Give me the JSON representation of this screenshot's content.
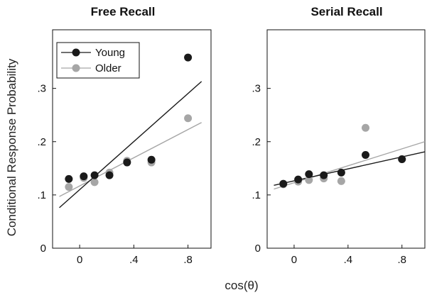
{
  "chart_data": [
    {
      "type": "scatter",
      "title": "Free Recall",
      "ylabel": "Conditional Response Probability",
      "xlabel": "cos(θ)",
      "xlim": [
        -0.2,
        0.97
      ],
      "ylim": [
        0,
        0.41
      ],
      "x_ticks": [
        0,
        0.4,
        0.8
      ],
      "x_tick_labels": [
        "0",
        ".4",
        ".8"
      ],
      "y_ticks": [
        0,
        0.1,
        0.2,
        0.3
      ],
      "y_tick_labels": [
        "0",
        ".1",
        ".2",
        ".3"
      ],
      "legend": {
        "position": "top-left"
      },
      "series": [
        {
          "name": "Young",
          "color": "#1a1a1a",
          "x": [
            -0.08,
            0.03,
            0.11,
            0.22,
            0.35,
            0.53,
            0.8
          ],
          "y": [
            0.13,
            0.135,
            0.137,
            0.137,
            0.161,
            0.166,
            0.358
          ],
          "fit": {
            "x": [
              -0.15,
              0.9
            ],
            "y": [
              0.076,
              0.313
            ]
          }
        },
        {
          "name": "Older",
          "color": "#a6a6a6",
          "x": [
            -0.08,
            0.03,
            0.11,
            0.22,
            0.35,
            0.53,
            0.8
          ],
          "y": [
            0.115,
            0.132,
            0.124,
            0.142,
            0.164,
            0.161,
            0.244
          ],
          "fit": {
            "x": [
              -0.15,
              0.9
            ],
            "y": [
              0.097,
              0.236
            ]
          }
        }
      ]
    },
    {
      "type": "scatter",
      "title": "Serial Recall",
      "xlim": [
        -0.2,
        0.97
      ],
      "ylim": [
        0,
        0.41
      ],
      "x_ticks": [
        0,
        0.4,
        0.8
      ],
      "x_tick_labels": [
        "0",
        ".4",
        ".8"
      ],
      "y_ticks": [
        0,
        0.1,
        0.2,
        0.3
      ],
      "y_tick_labels": [
        "0",
        ".1",
        ".2",
        ".3"
      ],
      "series": [
        {
          "name": "Young",
          "color": "#1a1a1a",
          "x": [
            -0.08,
            0.03,
            0.11,
            0.22,
            0.35,
            0.53,
            0.8
          ],
          "y": [
            0.121,
            0.129,
            0.139,
            0.137,
            0.142,
            0.175,
            0.167
          ],
          "fit": {
            "x": [
              -0.15,
              0.97
            ],
            "y": [
              0.118,
              0.181
            ]
          }
        },
        {
          "name": "Older",
          "color": "#a6a6a6",
          "x": [
            -0.08,
            0.03,
            0.11,
            0.22,
            0.35,
            0.53,
            0.8
          ],
          "y": [
            0.12,
            0.125,
            0.128,
            0.131,
            0.126,
            0.226,
            0.167
          ],
          "fit": {
            "x": [
              -0.15,
              0.97
            ],
            "y": [
              0.111,
              0.2
            ]
          }
        }
      ]
    }
  ]
}
